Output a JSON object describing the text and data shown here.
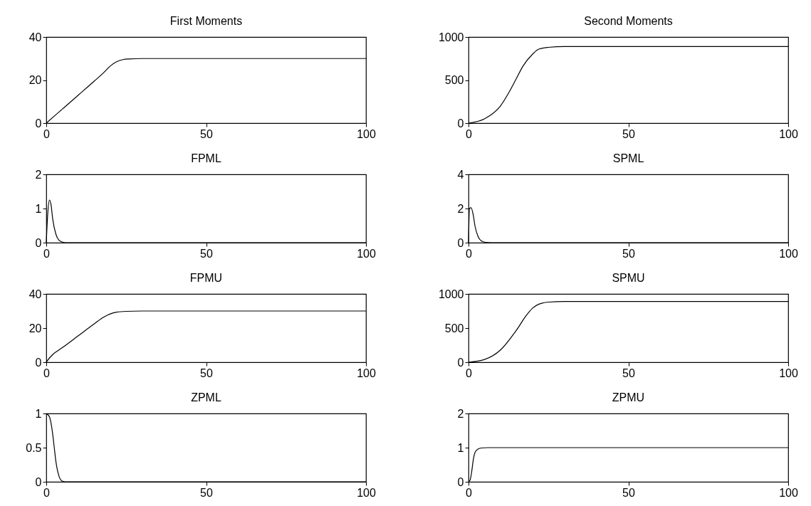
{
  "chart_data": [
    {
      "type": "line",
      "title": "First Moments",
      "x": [
        0,
        5,
        10,
        15,
        18,
        20,
        22,
        24,
        26,
        30,
        100
      ],
      "series": [
        {
          "color": "#000000",
          "values": [
            0,
            6.5,
            13,
            19.5,
            23.5,
            26.5,
            28.5,
            29.5,
            29.8,
            30,
            30
          ]
        }
      ],
      "xlim": [
        0,
        100
      ],
      "xticks": [
        0,
        50,
        100
      ],
      "ylim": [
        0,
        40
      ],
      "yticks": [
        0,
        20,
        40
      ],
      "grid": false
    },
    {
      "type": "line",
      "title": "Second Moments",
      "x": [
        0,
        5,
        10,
        13,
        15,
        17,
        20,
        22,
        25,
        30,
        100
      ],
      "series": [
        {
          "color": "#000000",
          "values": [
            0,
            50,
            200,
            380,
            520,
            660,
            800,
            860,
            880,
            890,
            890
          ]
        }
      ],
      "xlim": [
        0,
        100
      ],
      "xticks": [
        0,
        50,
        100
      ],
      "ylim": [
        0,
        1000
      ],
      "yticks": [
        0,
        500,
        1000
      ],
      "grid": false
    },
    {
      "type": "line",
      "title": "FPML",
      "x": [
        0,
        0.5,
        1,
        1.5,
        2,
        3,
        4,
        5,
        6,
        100
      ],
      "series": [
        {
          "color": "#000000",
          "values": [
            0,
            0.9,
            1.25,
            1.1,
            0.7,
            0.25,
            0.07,
            0.02,
            0,
            0
          ]
        }
      ],
      "xlim": [
        0,
        100
      ],
      "xticks": [
        0,
        50,
        100
      ],
      "ylim": [
        0,
        2
      ],
      "yticks": [
        0,
        1,
        2
      ],
      "grid": false
    },
    {
      "type": "line",
      "title": "SPML",
      "x": [
        0,
        0.3,
        0.8,
        1.5,
        2,
        3,
        4,
        5,
        7,
        100
      ],
      "series": [
        {
          "color": "#000000",
          "values": [
            0,
            2,
            2.05,
            1.6,
            1,
            0.35,
            0.1,
            0.03,
            0,
            0
          ]
        }
      ],
      "xlim": [
        0,
        100
      ],
      "xticks": [
        0,
        50,
        100
      ],
      "ylim": [
        0,
        4
      ],
      "yticks": [
        0,
        2,
        4
      ],
      "grid": false
    },
    {
      "type": "line",
      "title": "FPMU",
      "x": [
        0,
        1,
        2,
        5,
        10,
        15,
        18,
        20,
        22,
        25,
        30,
        100
      ],
      "series": [
        {
          "color": "#000000",
          "values": [
            0,
            2.5,
            4.5,
            8.5,
            15.5,
            22.5,
            26.5,
            28.3,
            29.3,
            29.8,
            30,
            30
          ]
        }
      ],
      "xlim": [
        0,
        100
      ],
      "xticks": [
        0,
        50,
        100
      ],
      "ylim": [
        0,
        40
      ],
      "yticks": [
        0,
        20,
        40
      ],
      "grid": false
    },
    {
      "type": "line",
      "title": "SPMU",
      "x": [
        0,
        5,
        10,
        15,
        18,
        20,
        22,
        25,
        30,
        100
      ],
      "series": [
        {
          "color": "#000000",
          "values": [
            0,
            40,
            180,
            470,
            680,
            790,
            850,
            880,
            890,
            890
          ]
        }
      ],
      "xlim": [
        0,
        100
      ],
      "xticks": [
        0,
        50,
        100
      ],
      "ylim": [
        0,
        1000
      ],
      "yticks": [
        0,
        500,
        1000
      ],
      "grid": false
    },
    {
      "type": "line",
      "title": "ZPML",
      "x": [
        0,
        1,
        2,
        2.5,
        3,
        4,
        5,
        6,
        100
      ],
      "series": [
        {
          "color": "#000000",
          "values": [
            1,
            0.95,
            0.7,
            0.5,
            0.3,
            0.08,
            0.01,
            0,
            0
          ]
        }
      ],
      "xlim": [
        0,
        100
      ],
      "xticks": [
        0,
        50,
        100
      ],
      "ylim": [
        0,
        1
      ],
      "yticks": [
        0,
        0.5,
        1
      ],
      "grid": false
    },
    {
      "type": "line",
      "title": "ZPMU",
      "x": [
        0,
        0.5,
        1,
        1.5,
        2,
        3,
        4,
        6,
        100
      ],
      "series": [
        {
          "color": "#000000",
          "values": [
            0,
            0.05,
            0.3,
            0.65,
            0.85,
            0.96,
            0.99,
            1,
            1
          ]
        }
      ],
      "xlim": [
        0,
        100
      ],
      "xticks": [
        0,
        50,
        100
      ],
      "ylim": [
        0,
        2
      ],
      "yticks": [
        0,
        1,
        2
      ],
      "grid": false
    }
  ]
}
